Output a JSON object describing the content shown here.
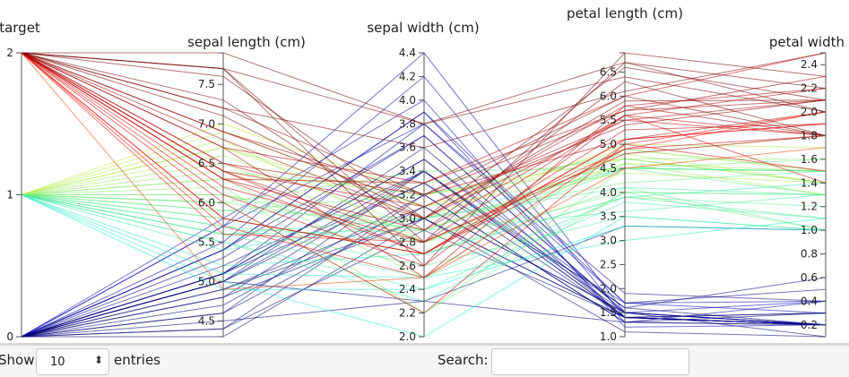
{
  "chart_data": {
    "type": "parallel-coordinates",
    "color_by": "target",
    "colormap": "jet",
    "axes": [
      {
        "key": "target",
        "label": "target",
        "range": [
          0,
          2
        ],
        "ticks": [
          "0",
          "1",
          "2"
        ]
      },
      {
        "key": "sepal_length",
        "label": "sepal length (cm)",
        "range": [
          4.3,
          7.9
        ],
        "ticks": [
          "4.5",
          "5.0",
          "5.5",
          "6.0",
          "6.5",
          "7.0",
          "7.5"
        ]
      },
      {
        "key": "sepal_width",
        "label": "sepal width (cm)",
        "range": [
          2.0,
          4.4
        ],
        "ticks": [
          "2.0",
          "2.2",
          "2.4",
          "2.6",
          "2.8",
          "3.0",
          "3.2",
          "3.4",
          "3.6",
          "3.8",
          "4.0",
          "4.2",
          "4.4"
        ]
      },
      {
        "key": "petal_length",
        "label": "petal length (cm)",
        "range": [
          1.0,
          6.9
        ],
        "ticks": [
          "1.0",
          "1.5",
          "2.0",
          "2.5",
          "3.0",
          "3.5",
          "4.0",
          "4.5",
          "5.0",
          "5.5",
          "6.0",
          "6.5"
        ]
      },
      {
        "key": "petal_width",
        "label": "petal width",
        "range": [
          0.1,
          2.5
        ],
        "ticks": [
          "0.2",
          "0.4",
          "0.6",
          "0.8",
          "1.0",
          "1.2",
          "1.4",
          "1.6",
          "1.8",
          "2.0",
          "2.2",
          "2.4"
        ]
      }
    ],
    "records": [
      [
        0,
        5.1,
        3.5,
        1.4,
        0.2
      ],
      [
        0,
        4.9,
        3.0,
        1.4,
        0.2
      ],
      [
        0,
        4.7,
        3.2,
        1.3,
        0.2
      ],
      [
        0,
        4.6,
        3.1,
        1.5,
        0.2
      ],
      [
        0,
        5.0,
        3.6,
        1.4,
        0.2
      ],
      [
        0,
        5.4,
        3.9,
        1.7,
        0.4
      ],
      [
        0,
        4.6,
        3.4,
        1.4,
        0.3
      ],
      [
        0,
        5.0,
        3.4,
        1.5,
        0.2
      ],
      [
        0,
        4.4,
        2.9,
        1.4,
        0.2
      ],
      [
        0,
        4.9,
        3.1,
        1.5,
        0.1
      ],
      [
        0,
        5.4,
        3.7,
        1.5,
        0.2
      ],
      [
        0,
        4.8,
        3.4,
        1.6,
        0.2
      ],
      [
        0,
        4.3,
        3.0,
        1.1,
        0.1
      ],
      [
        0,
        5.8,
        4.0,
        1.2,
        0.2
      ],
      [
        0,
        5.7,
        4.4,
        1.5,
        0.4
      ],
      [
        0,
        5.4,
        3.9,
        1.3,
        0.4
      ],
      [
        0,
        5.1,
        3.8,
        1.9,
        0.4
      ],
      [
        0,
        5.7,
        3.8,
        1.7,
        0.3
      ],
      [
        0,
        5.2,
        3.4,
        1.4,
        0.2
      ],
      [
        0,
        5.0,
        2.3,
        3.3,
        1.0
      ],
      [
        0,
        4.5,
        2.3,
        1.3,
        0.3
      ],
      [
        0,
        5.5,
        4.2,
        1.4,
        0.2
      ],
      [
        0,
        5.1,
        3.3,
        1.7,
        0.5
      ],
      [
        0,
        4.8,
        3.0,
        1.4,
        0.3
      ],
      [
        0,
        5.3,
        3.7,
        1.5,
        0.2
      ],
      [
        0,
        5.0,
        3.3,
        1.4,
        0.2
      ],
      [
        0,
        4.4,
        3.2,
        1.3,
        0.2
      ],
      [
        0,
        5.1,
        3.5,
        1.6,
        0.6
      ],
      [
        1,
        7.0,
        3.2,
        4.7,
        1.4
      ],
      [
        1,
        6.4,
        3.2,
        4.5,
        1.5
      ],
      [
        1,
        6.9,
        3.1,
        4.9,
        1.5
      ],
      [
        1,
        5.5,
        2.3,
        4.0,
        1.3
      ],
      [
        1,
        6.5,
        2.8,
        4.6,
        1.5
      ],
      [
        1,
        5.7,
        2.8,
        4.5,
        1.3
      ],
      [
        1,
        6.3,
        3.3,
        4.7,
        1.6
      ],
      [
        1,
        4.9,
        2.4,
        3.3,
        1.0
      ],
      [
        1,
        6.6,
        2.9,
        4.6,
        1.3
      ],
      [
        1,
        5.2,
        2.7,
        3.9,
        1.4
      ],
      [
        1,
        5.0,
        2.0,
        3.5,
        1.0
      ],
      [
        1,
        5.9,
        3.0,
        4.2,
        1.5
      ],
      [
        1,
        6.0,
        2.2,
        4.0,
        1.0
      ],
      [
        1,
        6.1,
        2.9,
        4.7,
        1.4
      ],
      [
        1,
        5.6,
        2.9,
        3.6,
        1.3
      ],
      [
        1,
        6.7,
        3.1,
        4.4,
        1.4
      ],
      [
        1,
        5.8,
        2.7,
        4.1,
        1.0
      ],
      [
        1,
        6.2,
        2.2,
        4.5,
        1.5
      ],
      [
        1,
        5.6,
        2.5,
        3.9,
        1.1
      ],
      [
        1,
        5.9,
        3.2,
        4.8,
        1.8
      ],
      [
        1,
        6.1,
        2.8,
        4.0,
        1.3
      ],
      [
        1,
        6.3,
        2.5,
        4.9,
        1.5
      ],
      [
        1,
        6.8,
        2.8,
        4.8,
        1.4
      ],
      [
        1,
        6.0,
        2.9,
        4.5,
        1.5
      ],
      [
        1,
        5.5,
        2.4,
        3.8,
        1.1
      ],
      [
        1,
        5.8,
        2.7,
        3.9,
        1.2
      ],
      [
        1,
        5.4,
        3.0,
        4.5,
        1.5
      ],
      [
        1,
        6.0,
        3.4,
        4.5,
        1.6
      ],
      [
        1,
        5.7,
        2.6,
        3.5,
        1.0
      ],
      [
        1,
        5.1,
        2.5,
        3.0,
        1.1
      ],
      [
        1,
        6.7,
        3.0,
        5.0,
        1.7
      ],
      [
        1,
        5.6,
        3.0,
        4.1,
        1.3
      ],
      [
        2,
        6.3,
        3.3,
        6.0,
        2.5
      ],
      [
        2,
        5.8,
        2.7,
        5.1,
        1.9
      ],
      [
        2,
        7.1,
        3.0,
        5.9,
        2.1
      ],
      [
        2,
        6.3,
        2.9,
        5.6,
        1.8
      ],
      [
        2,
        6.5,
        3.0,
        5.8,
        2.2
      ],
      [
        2,
        7.6,
        3.0,
        6.6,
        2.1
      ],
      [
        2,
        4.9,
        2.5,
        4.5,
        1.7
      ],
      [
        2,
        7.3,
        2.9,
        6.3,
        1.8
      ],
      [
        2,
        6.7,
        2.5,
        5.8,
        1.8
      ],
      [
        2,
        7.2,
        3.6,
        6.1,
        2.5
      ],
      [
        2,
        6.5,
        3.2,
        5.1,
        2.0
      ],
      [
        2,
        6.4,
        2.7,
        5.3,
        1.9
      ],
      [
        2,
        6.8,
        3.0,
        5.5,
        2.1
      ],
      [
        2,
        5.7,
        2.5,
        5.0,
        2.0
      ],
      [
        2,
        7.7,
        3.8,
        6.7,
        2.2
      ],
      [
        2,
        7.7,
        2.6,
        6.9,
        2.3
      ],
      [
        2,
        6.0,
        2.2,
        5.0,
        1.5
      ],
      [
        2,
        6.9,
        3.2,
        5.7,
        2.3
      ],
      [
        2,
        5.6,
        2.8,
        4.9,
        2.0
      ],
      [
        2,
        7.7,
        2.8,
        6.7,
        2.0
      ],
      [
        2,
        6.3,
        2.7,
        4.9,
        1.8
      ],
      [
        2,
        6.7,
        3.3,
        5.7,
        2.1
      ],
      [
        2,
        7.2,
        3.2,
        6.0,
        1.8
      ],
      [
        2,
        6.2,
        2.8,
        4.8,
        1.8
      ],
      [
        2,
        7.9,
        3.8,
        6.4,
        2.0
      ],
      [
        2,
        6.4,
        2.8,
        5.6,
        2.2
      ],
      [
        2,
        6.1,
        2.6,
        5.6,
        1.4
      ],
      [
        2,
        6.4,
        3.1,
        5.5,
        1.8
      ],
      [
        2,
        6.9,
        3.1,
        5.4,
        2.1
      ],
      [
        2,
        5.8,
        2.7,
        5.1,
        1.9
      ]
    ]
  },
  "table_controls": {
    "show_label": "Show",
    "length_value": "10",
    "entries_label": "entries",
    "search_label": "Search:",
    "search_value": ""
  },
  "icons": {
    "length_select": "up-down-arrows-icon"
  }
}
